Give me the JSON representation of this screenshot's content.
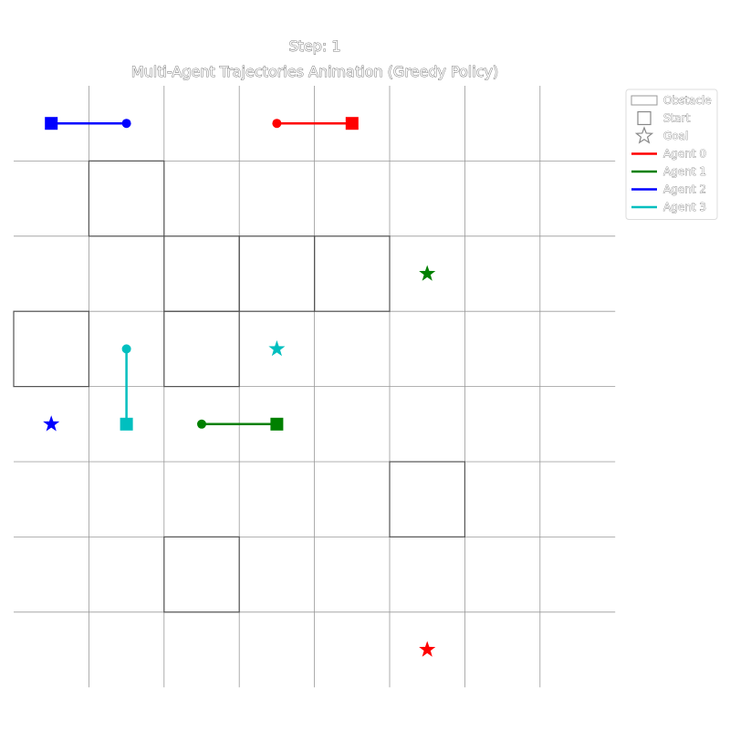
{
  "chart_data": {
    "type": "scatter",
    "title_step": "Step: 1",
    "title": "Multi-Agent Trajectories Animation (Greedy Policy)",
    "grid_size": 8,
    "xlim": [
      0,
      8
    ],
    "ylim": [
      0,
      8
    ],
    "grid": true,
    "legend_position": "upper-right-outside",
    "obstacles": [
      {
        "x": 1,
        "y": 1
      },
      {
        "x": 2,
        "y": 2
      },
      {
        "x": 3,
        "y": 2
      },
      {
        "x": 4,
        "y": 2
      },
      {
        "x": 0,
        "y": 3
      },
      {
        "x": 2,
        "y": 3
      },
      {
        "x": 5,
        "y": 5
      },
      {
        "x": 2,
        "y": 6
      }
    ],
    "agents": [
      {
        "name": "Agent 0",
        "color": "#ff0000",
        "start": {
          "x": 4.5,
          "y": 0.5
        },
        "current": {
          "x": 3.5,
          "y": 0.5
        },
        "goal": {
          "x": 5.5,
          "y": 7.5
        }
      },
      {
        "name": "Agent 1",
        "color": "#008000",
        "start": {
          "x": 3.5,
          "y": 4.5
        },
        "current": {
          "x": 2.5,
          "y": 4.5
        },
        "goal": {
          "x": 5.5,
          "y": 2.5
        }
      },
      {
        "name": "Agent 2",
        "color": "#0000ff",
        "start": {
          "x": 0.5,
          "y": 0.5
        },
        "current": {
          "x": 1.5,
          "y": 0.5
        },
        "goal": {
          "x": 0.5,
          "y": 4.5
        }
      },
      {
        "name": "Agent 3",
        "color": "#00bfbf",
        "start": {
          "x": 1.5,
          "y": 4.5
        },
        "current": {
          "x": 1.5,
          "y": 3.5
        },
        "goal": {
          "x": 3.5,
          "y": 3.5
        }
      }
    ],
    "legend": [
      {
        "label": "Obstacle",
        "kind": "patch"
      },
      {
        "label": "Start",
        "kind": "square"
      },
      {
        "label": "Goal",
        "kind": "star"
      },
      {
        "label": "Agent 0",
        "kind": "line",
        "color": "#ff0000"
      },
      {
        "label": "Agent 1",
        "kind": "line",
        "color": "#008000"
      },
      {
        "label": "Agent 2",
        "kind": "line",
        "color": "#0000ff"
      },
      {
        "label": "Agent 3",
        "kind": "line",
        "color": "#00bfbf"
      }
    ]
  }
}
